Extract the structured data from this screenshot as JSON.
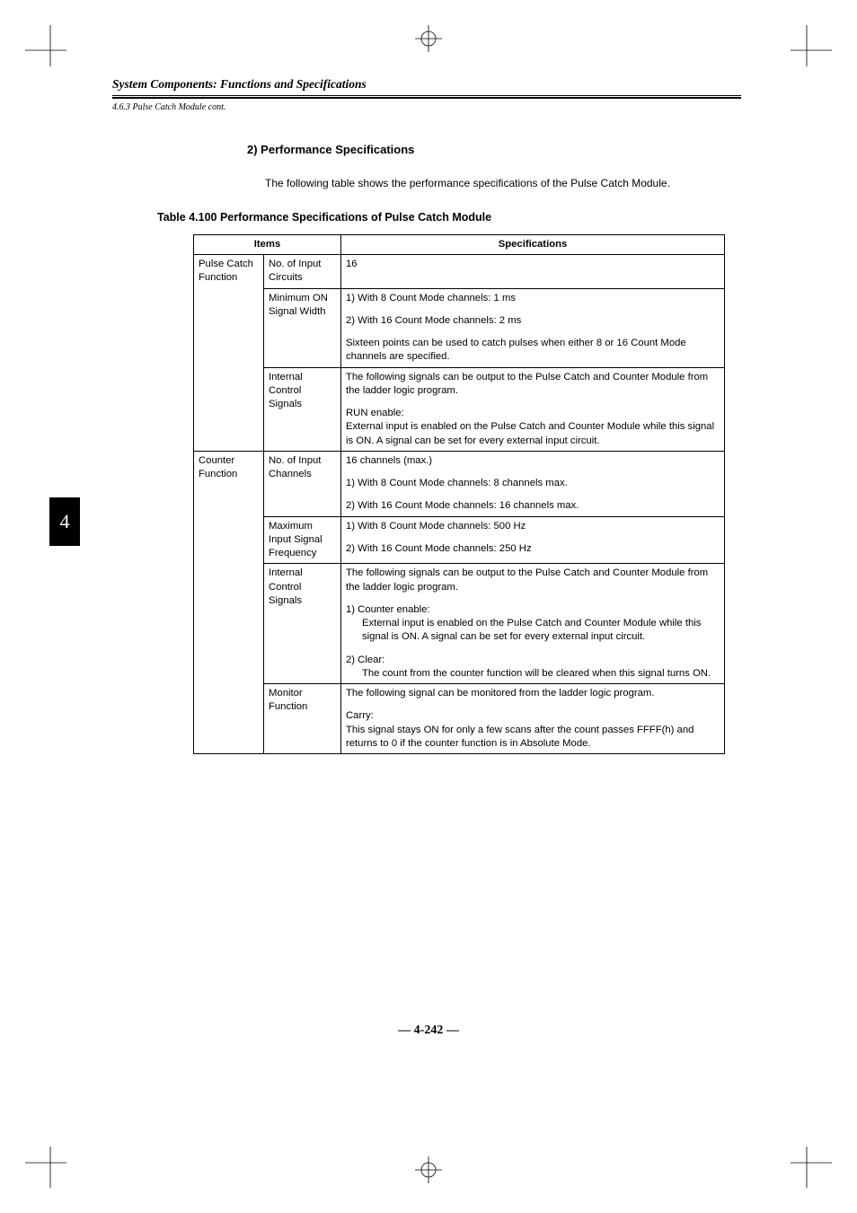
{
  "chapter_tab": "4",
  "running_header": "System Components: Functions and Specifications",
  "cont_line": "4.6.3 Pulse Catch Module cont.",
  "section_heading": "2) Performance Specifications",
  "intro_para": "The following table shows the performance specifications of the Pulse Catch Module.",
  "table_caption": "Table 4.100 Performance Specifications of Pulse Catch Module",
  "table": {
    "header_items": "Items",
    "header_spec": "Specifications",
    "rows": [
      {
        "group": "Pulse Catch Function",
        "item": "No. of Input Circuits",
        "spec": [
          "16"
        ]
      },
      {
        "item": "Minimum ON Signal Width",
        "spec": [
          "1)  With 8 Count Mode channels: 1 ms",
          "2)  With 16 Count Mode channels: 2 ms",
          "Sixteen points can be used to catch pulses when either 8 or 16 Count Mode channels are specified."
        ]
      },
      {
        "item": "Internal Control Signals",
        "spec": [
          "The following signals can be output to the Pulse Catch and Counter Module from the ladder logic program.",
          "RUN enable:\nExternal input is enabled on the Pulse Catch and Counter Module while this signal is ON. A signal can be set for every external input circuit."
        ]
      },
      {
        "group": "Counter Function",
        "item": "No. of Input Channels",
        "spec": [
          "16 channels (max.)",
          "1)  With 8 Count Mode channels: 8 channels max.",
          "2)  With 16 Count Mode channels: 16 channels max."
        ]
      },
      {
        "item": "Maximum Input Signal Frequency",
        "spec": [
          "1)  With 8 Count Mode channels: 500 Hz",
          "2)  With 16 Count Mode channels: 250 Hz"
        ]
      },
      {
        "item": "Internal Control Signals",
        "spec": [
          "The following signals can be output to the Pulse Catch and Counter Module from the ladder logic program.",
          "1)  Counter enable:\nExternal input is enabled on the Pulse Catch and Counter Module while this signal is ON. A signal can be set for every external input circuit.",
          "2)  Clear:\nThe count from the counter function will be cleared when this signal turns ON."
        ]
      },
      {
        "item": "Monitor Function",
        "spec": [
          "The following signal can be monitored from the ladder logic program.",
          "Carry:\nThis signal stays ON for only a few scans after the count passes FFFF(h) and returns to 0 if the counter function is in Absolute Mode."
        ]
      }
    ]
  },
  "page_number": "— 4-242 —"
}
